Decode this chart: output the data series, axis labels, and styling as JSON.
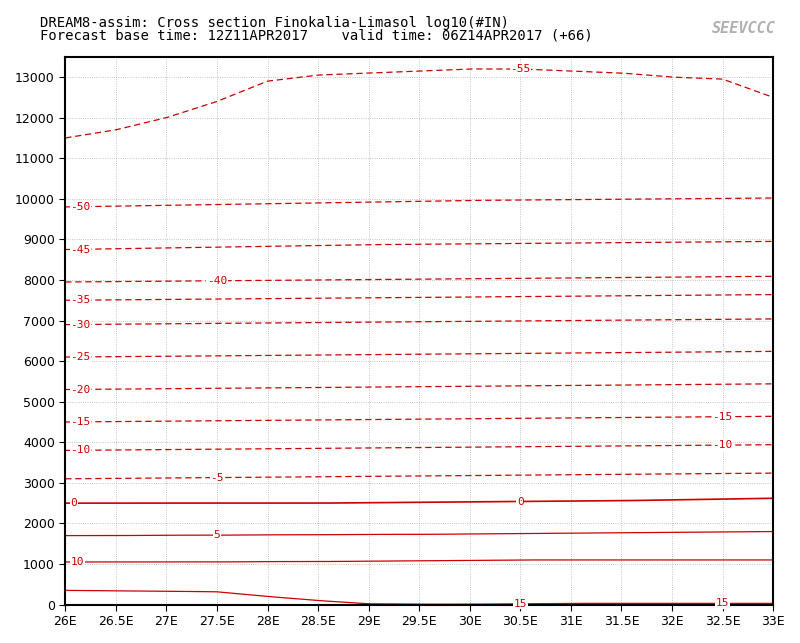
{
  "title_line1": "DREAM8-assim: Cross section Finokalia-Limasol log10(#IN)",
  "title_line2": "Forecast base time: 12Z11APR2017    valid time: 06Z14APR2017 (+66)",
  "x_min": 26.0,
  "x_max": 33.0,
  "y_min": 0,
  "y_max": 13500,
  "x_ticks": [
    26.0,
    26.5,
    27.0,
    27.5,
    28.0,
    28.5,
    29.0,
    29.5,
    30.0,
    30.5,
    31.0,
    31.5,
    32.0,
    32.5,
    33.0
  ],
  "x_tick_labels": [
    "26E",
    "26.5E",
    "27E",
    "27.5E",
    "28E",
    "28.5E",
    "29E",
    "29.5E",
    "30E",
    "30.5E",
    "31E",
    "31.5E",
    "32E",
    "32.5E",
    "33E"
  ],
  "y_ticks": [
    0,
    1000,
    2000,
    3000,
    4000,
    5000,
    6000,
    7000,
    8000,
    9000,
    10000,
    11000,
    12000,
    13000
  ],
  "contour_color": "#cc0000",
  "background_color": "#ffffff",
  "grid_color": "#aaaaaa",
  "contour_levels": [
    -55,
    -50,
    -45,
    -40,
    -35,
    -30,
    -25,
    -20,
    -15,
    -10,
    -5,
    0,
    5,
    10,
    15
  ],
  "contour_altitudes": {
    "-55": [
      11500,
      11700,
      12000,
      12400,
      12900,
      13050,
      13100,
      13150,
      13200,
      13200,
      13150,
      13100,
      13000,
      12950,
      12500
    ],
    "-50": [
      9800,
      9820,
      9840,
      9860,
      9880,
      9900,
      9920,
      9940,
      9960,
      9970,
      9980,
      9990,
      10000,
      10010,
      10020
    ],
    "-45": [
      8750,
      8770,
      8790,
      8810,
      8830,
      8850,
      8870,
      8880,
      8890,
      8900,
      8910,
      8920,
      8930,
      8940,
      8950
    ],
    "-40": [
      7950,
      7960,
      7970,
      7980,
      7990,
      8000,
      8010,
      8020,
      8030,
      8040,
      8050,
      8060,
      8070,
      8080,
      8090
    ],
    "-35": [
      7500,
      7510,
      7520,
      7530,
      7540,
      7550,
      7560,
      7570,
      7580,
      7590,
      7600,
      7610,
      7620,
      7630,
      7640
    ],
    "-30": [
      6900,
      6910,
      6920,
      6930,
      6940,
      6950,
      6960,
      6970,
      6980,
      6990,
      7000,
      7010,
      7020,
      7030,
      7040
    ],
    "-25": [
      6100,
      6110,
      6120,
      6130,
      6140,
      6150,
      6160,
      6170,
      6180,
      6190,
      6200,
      6210,
      6220,
      6230,
      6240
    ],
    "-20": [
      5300,
      5310,
      5320,
      5330,
      5340,
      5350,
      5360,
      5370,
      5380,
      5390,
      5400,
      5410,
      5420,
      5430,
      5440
    ],
    "-15": [
      4500,
      4510,
      4520,
      4530,
      4540,
      4550,
      4560,
      4570,
      4580,
      4590,
      4600,
      4610,
      4620,
      4630,
      4640
    ],
    "-10": [
      3800,
      3810,
      3820,
      3830,
      3840,
      3850,
      3860,
      3870,
      3880,
      3890,
      3900,
      3910,
      3920,
      3930,
      3940
    ],
    "-5": [
      3100,
      3110,
      3120,
      3130,
      3140,
      3150,
      3160,
      3170,
      3180,
      3190,
      3200,
      3210,
      3220,
      3230,
      3240
    ],
    "0": [
      2500,
      2500,
      2500,
      2500,
      2500,
      2500,
      2510,
      2520,
      2530,
      2540,
      2550,
      2560,
      2580,
      2600,
      2620
    ],
    "5": [
      1700,
      1700,
      1710,
      1710,
      1720,
      1720,
      1730,
      1730,
      1740,
      1750,
      1760,
      1770,
      1780,
      1790,
      1800
    ],
    "10": [
      1050,
      1050,
      1050,
      1050,
      1060,
      1060,
      1070,
      1080,
      1090,
      1100,
      1100,
      1100,
      1100,
      1100,
      1100
    ],
    "15": [
      350,
      340,
      330,
      315,
      200,
      100,
      20,
      10,
      10,
      20,
      30,
      30,
      30,
      30,
      30
    ]
  },
  "label_positions": {
    "-55": [
      [
        30.5,
        "mid"
      ]
    ],
    "-50": [
      [
        26.0,
        "left"
      ]
    ],
    "-45": [
      [
        26.0,
        "left"
      ]
    ],
    "-40": [
      [
        27.5,
        "mid"
      ]
    ],
    "-35": [
      [
        26.0,
        "left"
      ]
    ],
    "-30": [
      [
        26.0,
        "left"
      ]
    ],
    "-25": [
      [
        26.0,
        "left"
      ]
    ],
    "-20": [
      [
        26.0,
        "left"
      ]
    ],
    "-15": [
      [
        26.0,
        "left"
      ]
    ],
    "-10": [
      [
        26.0,
        "left"
      ]
    ],
    "-5": [
      [
        27.5,
        "mid"
      ]
    ],
    "0": [
      [
        26.0,
        "left"
      ],
      [
        30.5,
        "mid"
      ]
    ],
    "5": [
      [
        27.5,
        "mid"
      ]
    ],
    "10": [
      [
        26.0,
        "left"
      ]
    ],
    "15": [
      [
        30.5,
        "mid"
      ],
      [
        32.5,
        "mid"
      ]
    ]
  },
  "logo_text": "SEEVCCC",
  "title_fontsize": 10,
  "tick_fontsize": 9,
  "contour_label_fontsize": 8
}
